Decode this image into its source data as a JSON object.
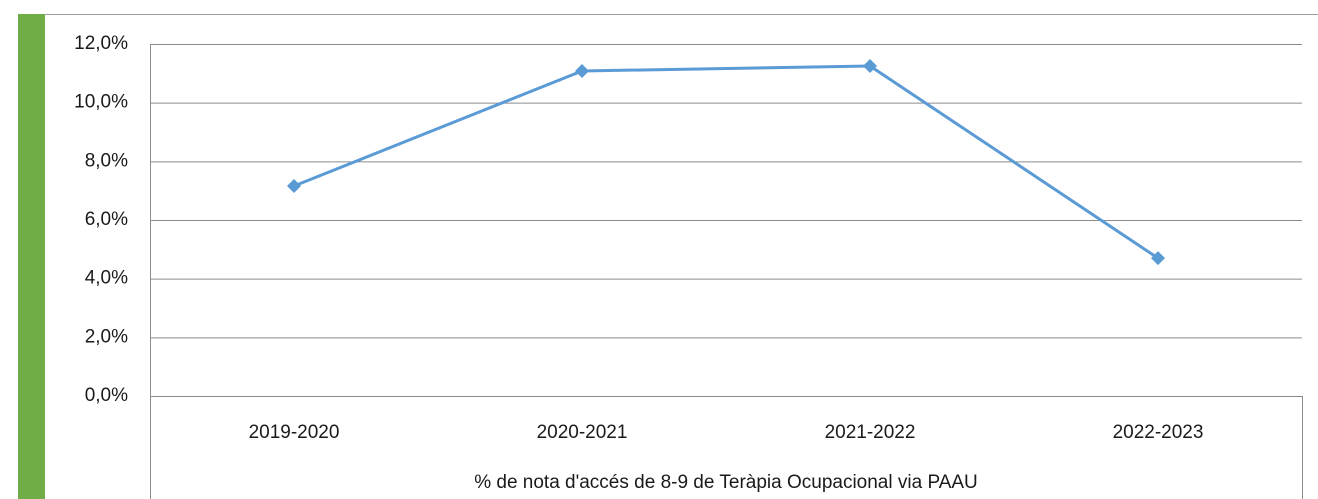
{
  "chart_data": {
    "type": "line",
    "x_label": "% de nota d'accés de 8-9 de Teràpia Ocupacional via PAAU",
    "categories": [
      "2019-2020",
      "2020-2021",
      "2021-2022",
      "2022-2023"
    ],
    "series": [
      {
        "color": "#5b9bd5",
        "values": [
          7.16,
          11.08,
          11.25,
          4.7
        ]
      }
    ],
    "ylim": [
      0,
      12
    ],
    "yticks": [
      {
        "value": 0,
        "label": "0,0%"
      },
      {
        "value": 2,
        "label": "2,0%"
      },
      {
        "value": 4,
        "label": "4,0%"
      },
      {
        "value": 6,
        "label": "6,0%"
      },
      {
        "value": 8,
        "label": "8,0%"
      },
      {
        "value": 10,
        "label": "10,0%"
      },
      {
        "value": 12,
        "label": "12,0%"
      }
    ],
    "grid": true
  }
}
